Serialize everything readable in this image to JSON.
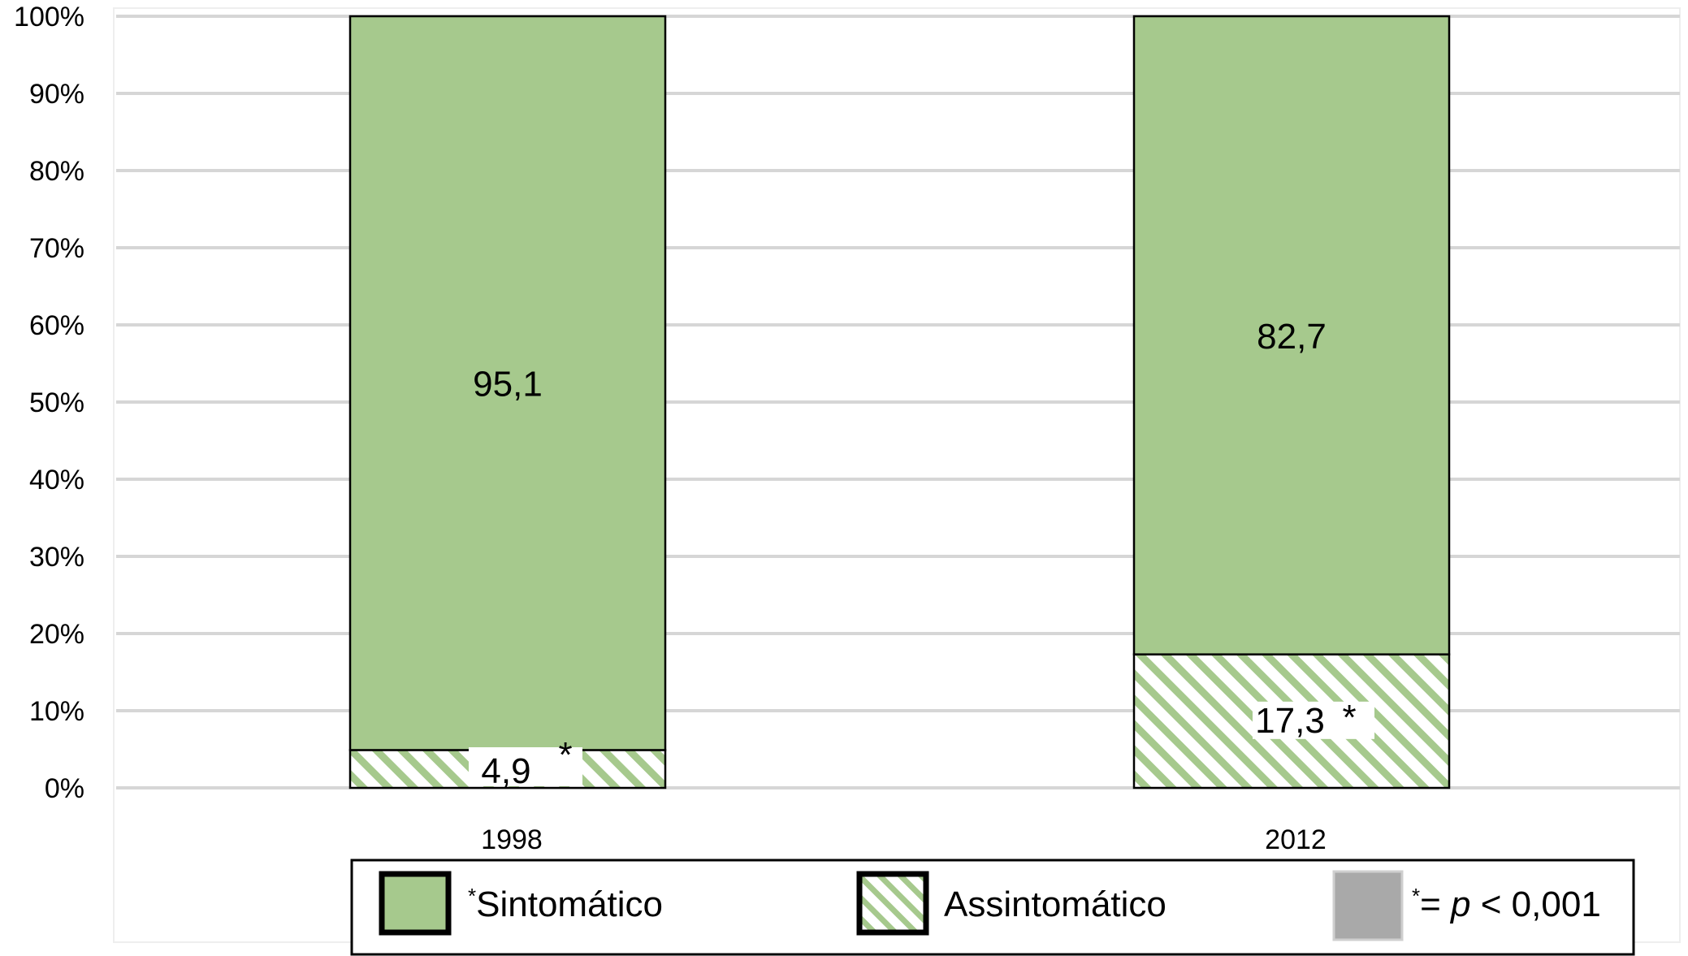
{
  "colors": {
    "sintomatico": "#a6c98d",
    "hatch": "#a6c98d",
    "grid": "#d6d6d6",
    "legend_gray": "#a9a9a9"
  },
  "chart_data": {
    "type": "bar",
    "stacked": true,
    "categories": [
      "1998",
      "2012"
    ],
    "series": [
      {
        "name": "Sintomático",
        "values": [
          95.1,
          82.7
        ],
        "labels": [
          "95,1",
          "82,7"
        ],
        "pattern": "solid"
      },
      {
        "name": "Assintomático",
        "values": [
          4.9,
          17.3
        ],
        "labels": [
          "4,9",
          "17,3"
        ],
        "pattern": "hatched",
        "marker": "*"
      }
    ],
    "y_ticks": [
      "0%",
      "10%",
      "20%",
      "30%",
      "40%",
      "50%",
      "60%",
      "70%",
      "80%",
      "90%",
      "100%"
    ],
    "ylim": [
      0,
      100
    ],
    "grid": true,
    "legend": {
      "placement": "bottom",
      "items": [
        {
          "marker": "*",
          "label": "Sintomático",
          "pattern": "solid"
        },
        {
          "marker": "",
          "label": "Assintomático",
          "pattern": "hatched"
        },
        {
          "marker": "*",
          "label_prefix": "= ",
          "label_italic": "p",
          "label_suffix": " < 0,001",
          "pattern": "gray"
        }
      ]
    }
  }
}
